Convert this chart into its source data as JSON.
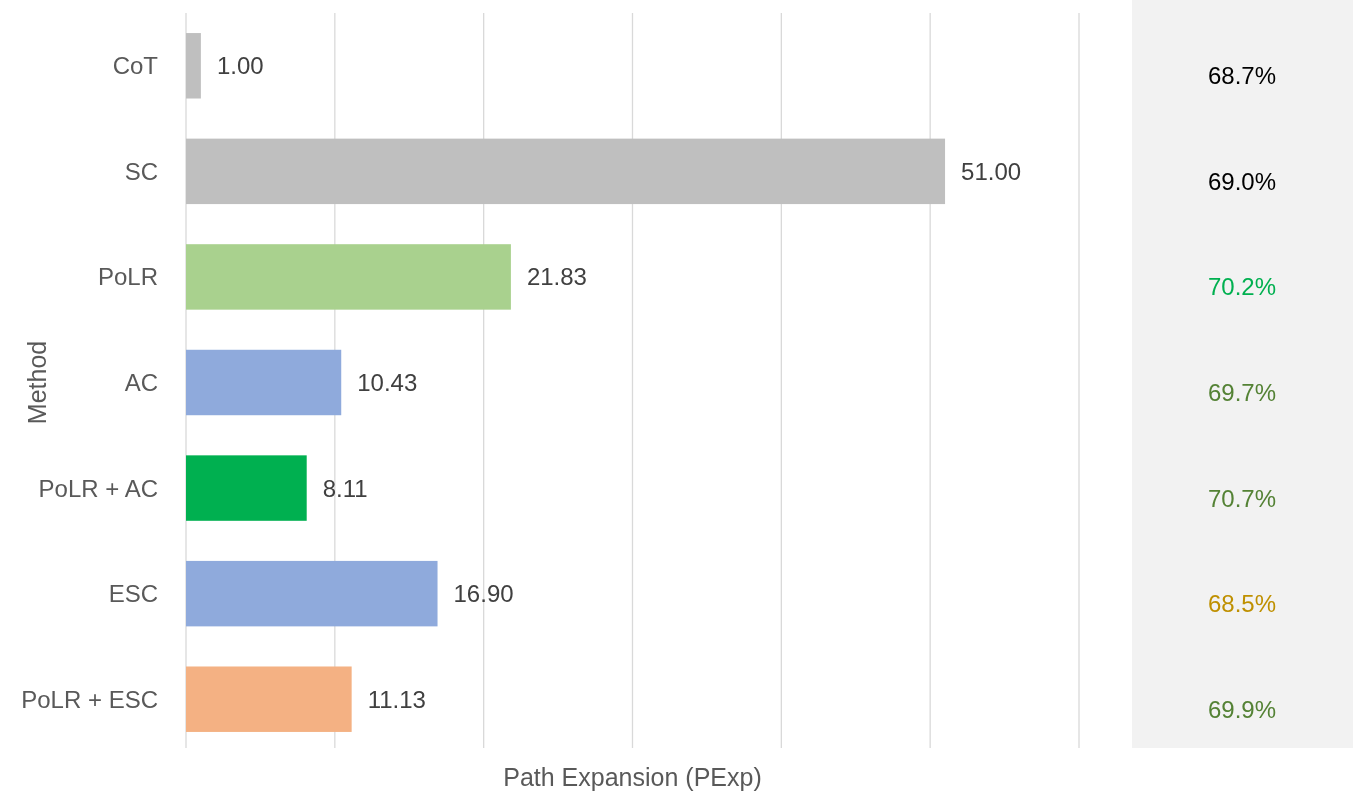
{
  "chart_data": [
    {
      "type": "bar",
      "orientation": "horizontal",
      "xlabel": "Path Expansion (PExp)",
      "ylabel": "Method",
      "categories": [
        "CoT",
        "SC",
        "PoLR",
        "AC",
        "PoLR + AC",
        "ESC",
        "PoLR + ESC"
      ],
      "values": [
        1.0,
        51.0,
        21.83,
        10.43,
        8.11,
        16.9,
        11.13
      ],
      "value_labels": [
        "1.00",
        "51.00",
        "21.83",
        "10.43",
        "8.11",
        "16.90",
        "11.13"
      ],
      "colors": [
        "#bfbfbf",
        "#bfbfbf",
        "#a9d18e",
        "#8faadc",
        "#00b050",
        "#8faadc",
        "#f4b183"
      ],
      "xlim": [
        0,
        60
      ],
      "xticks": [
        {
          "value": 0,
          "label": null
        },
        {
          "value": 10,
          "label": null
        },
        {
          "value": 20,
          "label": null
        },
        {
          "value": 30,
          "label": null
        },
        {
          "value": 40,
          "label": null
        },
        {
          "value": 50,
          "label": null
        },
        {
          "value": 60,
          "label": null
        }
      ],
      "grid": "x",
      "tick_labels": "y"
    },
    {
      "type": "other",
      "categories": [
        null,
        null,
        null,
        null,
        null,
        null,
        null
      ],
      "values": [
        68.7,
        69.0,
        70.2,
        69.7,
        70.7,
        68.5,
        69.9
      ],
      "value_labels": [
        "68.7%",
        "69.0%",
        "70.2%",
        "69.7%",
        "70.7%",
        "68.5%",
        "69.9%"
      ],
      "colors": [
        "#000000",
        "#000000",
        "#00b050",
        "#548235",
        "#548235",
        "#bf9000",
        "#548235"
      ]
    }
  ]
}
